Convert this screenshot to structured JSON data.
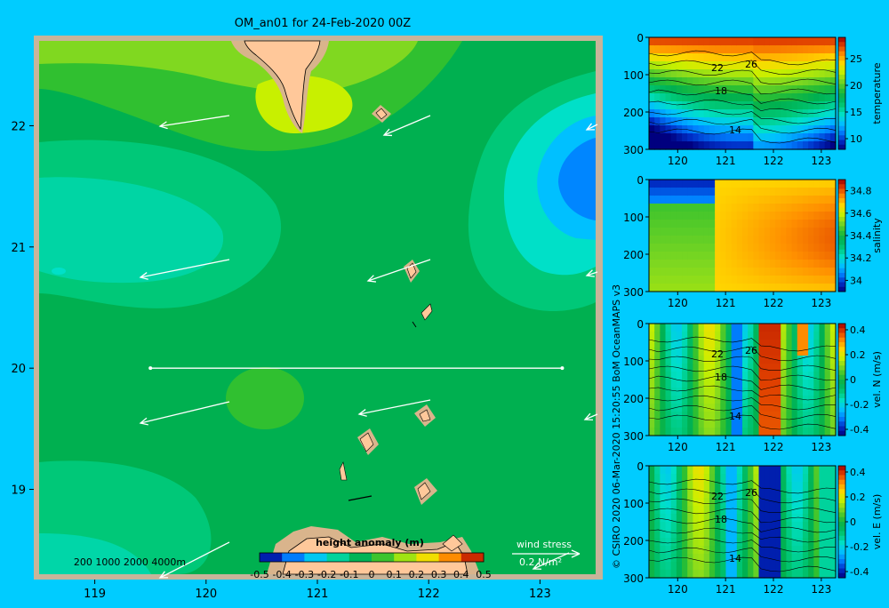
{
  "title": "OM_an01 for 24-Feb-2020 00Z",
  "credit": "© CSIRO 2020  06-Mar-2020 15:20:55 BoM OceanMAPS v3",
  "colors": {
    "background": "#00ccff",
    "frame": "#c8b49a",
    "land": "#ffc89a",
    "shelf": "#d9b48c",
    "vectors": "#ffffff",
    "cmap": [
      "#00007f",
      "#0030c8",
      "#0080ff",
      "#00c0ff",
      "#00e0c8",
      "#00c878",
      "#00b050",
      "#30c030",
      "#80d820",
      "#c8f000",
      "#ffd800",
      "#ff9000",
      "#e04000",
      "#a00000"
    ]
  },
  "map": {
    "xticks": [
      "119",
      "120",
      "121",
      "122",
      "123"
    ],
    "yticks": [
      "22",
      "21",
      "20",
      "19"
    ],
    "depth_legend": "200  1000  2000  4000m",
    "wind_label": "wind stress",
    "wind_scale": "0.2 N/m²",
    "colorbar_title": "height anomaly  (m)",
    "colorbar_ticks": [
      "-0.5",
      "-0.4",
      "-0.3",
      "-0.2",
      "-0.1",
      "0",
      "0.1",
      "0.2",
      "0.3",
      "0.4",
      "0.5"
    ]
  },
  "chart_data": [
    {
      "type": "heatmap",
      "title": "OM_an01 for 24-Feb-2020 00Z",
      "x_range": [
        118.5,
        123.5
      ],
      "y_range": [
        18.3,
        22.7
      ],
      "variable": "height anomaly (m)",
      "color_range": [
        -0.5,
        0.5
      ],
      "section_line": {
        "lat": 20,
        "lon_from": 119.5,
        "lon_to": 123.2
      }
    },
    {
      "type": "heatmap",
      "colorbar_label": "temperature",
      "x_ticks": [
        "120",
        "121",
        "122",
        "123"
      ],
      "y_ticks": [
        "0",
        "100",
        "200",
        "300"
      ],
      "cbar_ticks": [
        "25",
        "20",
        "15",
        "10"
      ],
      "contour_labels": [
        "22",
        "26",
        "18",
        "14"
      ],
      "color_range": [
        8,
        29
      ]
    },
    {
      "type": "heatmap",
      "colorbar_label": "salinity",
      "x_ticks": [
        "120",
        "121",
        "122",
        "123"
      ],
      "y_ticks": [
        "0",
        "100",
        "200",
        "300"
      ],
      "cbar_ticks": [
        "34.8",
        "34.6",
        "34.4",
        "34.2",
        "34"
      ],
      "color_range": [
        33.9,
        34.9
      ]
    },
    {
      "type": "heatmap",
      "colorbar_label": "vel. N (m/s)",
      "x_ticks": [
        "120",
        "121",
        "122",
        "123"
      ],
      "y_ticks": [
        "0",
        "100",
        "200",
        "300"
      ],
      "cbar_ticks": [
        "0.4",
        "0.2",
        "0",
        "-0.2",
        "-0.4"
      ],
      "contour_labels": [
        "22",
        "26",
        "18",
        "14"
      ],
      "color_range": [
        -0.45,
        0.45
      ]
    },
    {
      "type": "heatmap",
      "colorbar_label": "vel. E (m/s)",
      "x_ticks": [
        "120",
        "121",
        "122",
        "123"
      ],
      "y_ticks": [
        "0",
        "100",
        "200",
        "300"
      ],
      "cbar_ticks": [
        "0.4",
        "0.2",
        "0",
        "-0.2",
        "-0.4"
      ],
      "contour_labels": [
        "22",
        "26",
        "18",
        "14"
      ],
      "color_range": [
        -0.45,
        0.45
      ]
    }
  ]
}
